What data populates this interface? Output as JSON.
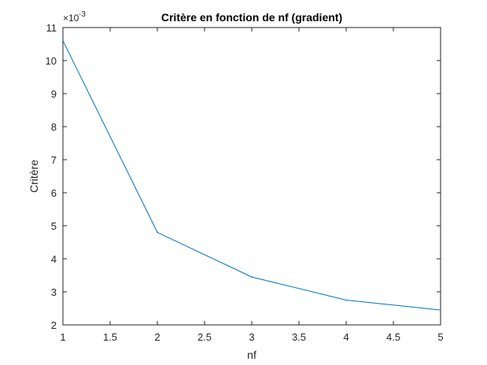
{
  "chart_data": {
    "type": "line",
    "title": "Critère en fonction de nf (gradient)",
    "xlabel": "nf",
    "ylabel": "Critère",
    "y_exponent_label": "×10",
    "y_exponent_power": "-3",
    "xlim": [
      1,
      5
    ],
    "ylim": [
      2,
      11
    ],
    "x_ticks": [
      "1",
      "1.5",
      "2",
      "2.5",
      "3",
      "3.5",
      "4",
      "4.5",
      "5"
    ],
    "x_tick_values": [
      1,
      1.5,
      2,
      2.5,
      3,
      3.5,
      4,
      4.5,
      5
    ],
    "y_ticks": [
      "2",
      "3",
      "4",
      "5",
      "6",
      "7",
      "8",
      "9",
      "10",
      "11"
    ],
    "y_tick_values": [
      2,
      3,
      4,
      5,
      6,
      7,
      8,
      9,
      10,
      11
    ],
    "grid": false,
    "series": [
      {
        "x": [
          1,
          2,
          3,
          4,
          5
        ],
        "y": [
          10.6,
          4.8,
          3.45,
          2.75,
          2.45
        ],
        "color": "#0072BD"
      }
    ]
  }
}
